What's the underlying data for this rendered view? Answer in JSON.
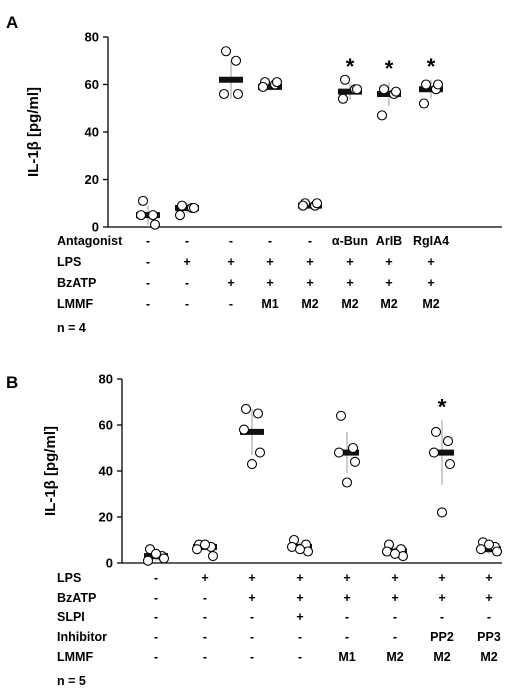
{
  "chart_data": [
    {
      "panel_label": "A",
      "type": "scatter",
      "ylabel": "IL-1β [pg/ml]",
      "ylim": [
        0,
        80
      ],
      "yticks": [
        "0",
        "20",
        "40",
        "60",
        "80"
      ],
      "groups": [
        {
          "mean": 5,
          "sd": 4,
          "points": [
            11,
            5,
            5,
            1
          ],
          "sig": ""
        },
        {
          "mean": 8,
          "sd": 2,
          "points": [
            9,
            8,
            5,
            8
          ],
          "sig": ""
        },
        {
          "mean": 62,
          "sd": 8,
          "points": [
            74,
            70,
            56,
            56
          ],
          "sig": ""
        },
        {
          "mean": 59,
          "sd": 1.5,
          "points": [
            61,
            60,
            59,
            61
          ],
          "sig": ""
        },
        {
          "mean": 9,
          "sd": 1,
          "points": [
            10,
            9,
            9,
            10
          ],
          "sig": ""
        },
        {
          "mean": 57,
          "sd": 3.5,
          "points": [
            62,
            58,
            54,
            58
          ],
          "sig": "*"
        },
        {
          "mean": 56,
          "sd": 5,
          "points": [
            58,
            56,
            47,
            57
          ],
          "sig": "*"
        },
        {
          "mean": 58,
          "sd": 4,
          "points": [
            60,
            58,
            52,
            60
          ],
          "sig": "*"
        }
      ],
      "rows": [
        {
          "label": "Antagonist",
          "values": [
            "-",
            "-",
            "-",
            "-",
            "-",
            "α-Bun",
            "ArIB",
            "RgIA4"
          ]
        },
        {
          "label": "LPS",
          "values": [
            "-",
            "+",
            "+",
            "+",
            "+",
            "+",
            "+",
            "+"
          ]
        },
        {
          "label": "BzATP",
          "values": [
            "-",
            "-",
            "+",
            "+",
            "+",
            "+",
            "+",
            "+"
          ]
        },
        {
          "label": "LMMF",
          "values": [
            "-",
            "-",
            "-",
            "M1",
            "M2",
            "M2",
            "M2",
            "M2"
          ]
        }
      ],
      "n_label": "n = 4"
    },
    {
      "panel_label": "B",
      "type": "scatter",
      "ylabel": "IL-1β [pg/ml]",
      "ylim": [
        0,
        80
      ],
      "yticks": [
        "0",
        "20",
        "40",
        "60",
        "80"
      ],
      "groups": [
        {
          "mean": 3,
          "sd": 2,
          "points": [
            6,
            3,
            1,
            2,
            4
          ],
          "sig": ""
        },
        {
          "mean": 7,
          "sd": 1.5,
          "points": [
            8,
            7,
            6,
            3,
            8
          ],
          "sig": ""
        },
        {
          "mean": 57,
          "sd": 10,
          "points": [
            67,
            65,
            58,
            48,
            43
          ],
          "sig": ""
        },
        {
          "mean": 7,
          "sd": 2,
          "points": [
            10,
            8,
            7,
            5,
            6
          ],
          "sig": ""
        },
        {
          "mean": 48,
          "sd": 9,
          "points": [
            64,
            50,
            48,
            44,
            35
          ],
          "sig": ""
        },
        {
          "mean": 5,
          "sd": 2,
          "points": [
            8,
            6,
            5,
            3,
            4
          ],
          "sig": ""
        },
        {
          "mean": 48,
          "sd": 14,
          "points": [
            57,
            53,
            48,
            43,
            22
          ],
          "sig": "*"
        },
        {
          "mean": 6,
          "sd": 2,
          "points": [
            9,
            7,
            6,
            5,
            8
          ],
          "sig": ""
        }
      ],
      "rows": [
        {
          "label": "LPS",
          "values": [
            "-",
            "+",
            "+",
            "+",
            "+",
            "+",
            "+",
            "+"
          ]
        },
        {
          "label": "BzATP",
          "values": [
            "-",
            "-",
            "+",
            "+",
            "+",
            "+",
            "+",
            "+"
          ]
        },
        {
          "label": "SLPI",
          "values": [
            "-",
            "-",
            "-",
            "+",
            "-",
            "-",
            "-",
            "-"
          ]
        },
        {
          "label": "Inhibitor",
          "values": [
            "-",
            "-",
            "-",
            "-",
            "-",
            "-",
            "PP2",
            "PP3"
          ]
        },
        {
          "label": "LMMF",
          "values": [
            "-",
            "-",
            "-",
            "-",
            "M1",
            "M2",
            "M2",
            "M2"
          ]
        }
      ],
      "n_label": "n = 5"
    }
  ]
}
